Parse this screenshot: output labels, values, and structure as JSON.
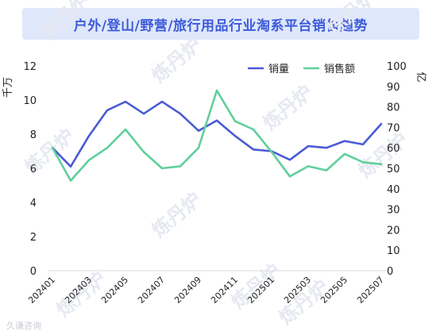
{
  "title": "户外/登山/野营/旅行用品行业淘系平台销售趋势",
  "watermark": "炼丹炉",
  "source": "久谦咨询",
  "chart_data": {
    "type": "line",
    "title": "户外/登山/野营/旅行用品行业淘系平台销售趋势",
    "x": [
      "202401",
      "202402",
      "202403",
      "202404",
      "202405",
      "202406",
      "202407",
      "202408",
      "202409",
      "202410",
      "202411",
      "202412",
      "202501",
      "202502",
      "202503",
      "202504",
      "202505",
      "202506",
      "202507"
    ],
    "x_tick_labels": [
      "202401",
      "202403",
      "202405",
      "202407",
      "202409",
      "202411",
      "202501",
      "202503",
      "202505",
      "202507"
    ],
    "series": [
      {
        "name": "销量",
        "axis": "left",
        "color": "#4a5bd4",
        "values": [
          7.2,
          6.1,
          7.9,
          9.4,
          9.9,
          9.2,
          9.9,
          9.2,
          8.2,
          8.8,
          7.9,
          7.1,
          7.0,
          6.5,
          7.3,
          7.2,
          7.6,
          7.4,
          8.6
        ]
      },
      {
        "name": "销售额",
        "axis": "right",
        "color": "#5fcf9c",
        "values": [
          60,
          44,
          54,
          60,
          69,
          58,
          50,
          51,
          60,
          88,
          73,
          69,
          58,
          46,
          51,
          49,
          57,
          53,
          52
        ]
      }
    ],
    "ylabel_left": "千万",
    "ylabel_right": "亿",
    "ylim_left": [
      0,
      12
    ],
    "yticks_left": [
      0,
      2,
      4,
      6,
      8,
      10,
      12
    ],
    "ylim_right": [
      0,
      100
    ],
    "yticks_right": [
      0,
      10,
      20,
      30,
      40,
      50,
      60,
      70,
      80,
      90,
      100
    ],
    "grid": false,
    "legend_position": "top-right"
  }
}
